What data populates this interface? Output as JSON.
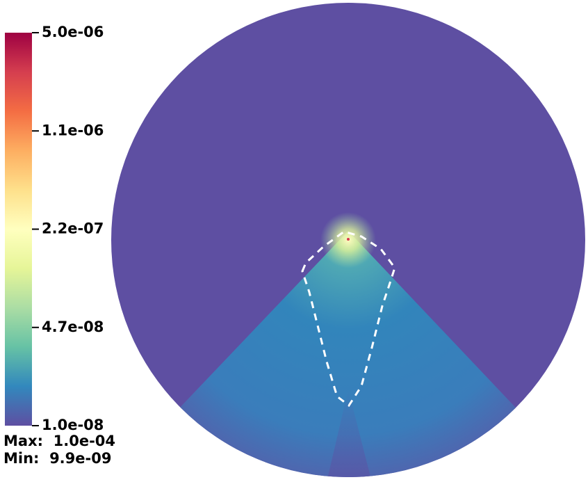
{
  "colorbar": {
    "ticks": [
      "5.0e-06",
      "1.1e-06",
      "2.2e-07",
      "4.7e-08",
      "1.0e-08"
    ]
  },
  "stats": {
    "max": "Max:  1.0e-04",
    "min": "Min:  9.9e-09"
  }
}
